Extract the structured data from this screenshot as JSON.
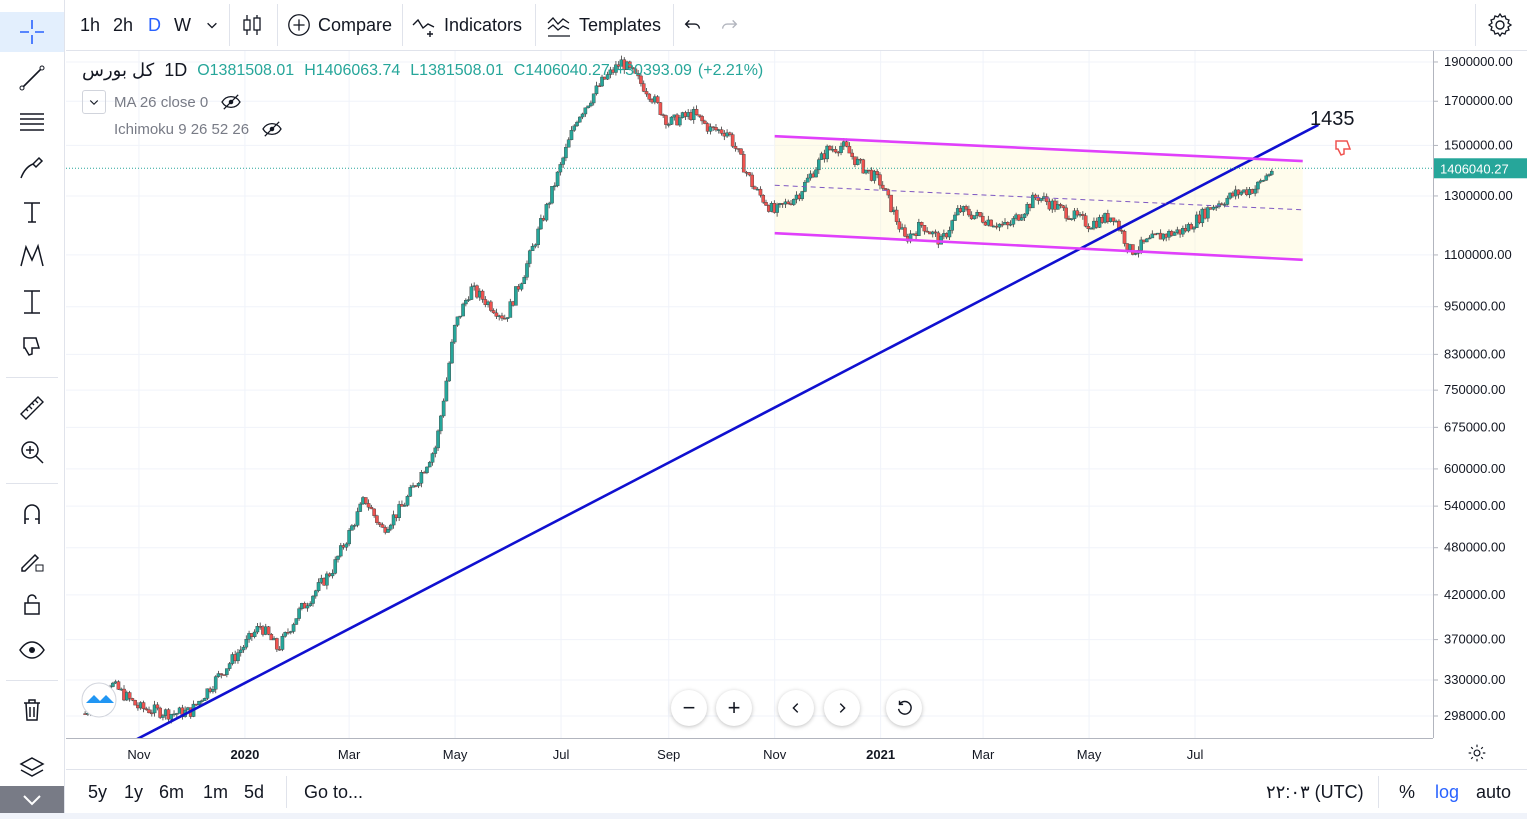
{
  "toolbar": {
    "intervals": [
      "1h",
      "2h",
      "D",
      "W"
    ],
    "active_interval": "D",
    "compare_label": "Compare",
    "indicators_label": "Indicators",
    "templates_label": "Templates"
  },
  "legend": {
    "symbol": "کل بورس",
    "interval": "1D",
    "open": "O1381508.01",
    "high": "H1406063.74",
    "low": "L1381508.01",
    "close": "C1406040.27",
    "change": "+30393.09",
    "change_pct": "(+2.21%)",
    "indicators": [
      {
        "label": "MA 26 close 0"
      },
      {
        "label": "Ichimoku 9 26 52 26"
      }
    ]
  },
  "annotation": {
    "text": "1435"
  },
  "price_axis": {
    "labels": [
      "1900000.00",
      "1700000.00",
      "1500000.00",
      "1300000.00",
      "1100000.00",
      "950000.00",
      "830000.00",
      "750000.00",
      "675000.00",
      "600000.00",
      "540000.00",
      "480000.00",
      "420000.00",
      "370000.00",
      "330000.00",
      "298000.00"
    ],
    "current_price": "1406040.27"
  },
  "time_axis": {
    "labels": [
      "Nov",
      "2020",
      "Mar",
      "May",
      "Jul",
      "Sep",
      "Nov",
      "2021",
      "Mar",
      "May",
      "Jul"
    ]
  },
  "bottom_bar": {
    "ranges": [
      "5y",
      "1y",
      "6m",
      "1m",
      "5d"
    ],
    "goto_label": "Go to...",
    "time": "۲۲:۰۳ (UTC)",
    "percent_label": "%",
    "log_label": "log",
    "auto_label": "auto"
  },
  "colors": {
    "up": "#26a69a",
    "down": "#ef5350",
    "trend_line": "#1010d0",
    "channel": "#e040fb",
    "accent": "#2962ff"
  },
  "chart_data": {
    "type": "candlestick",
    "scale": "log",
    "ylim": [
      280000,
      1960000
    ],
    "x": [
      "2019-10",
      "2019-11",
      "2019-12",
      "2020-01",
      "2020-02",
      "2020-03",
      "2020-04",
      "2020-05",
      "2020-06",
      "2020-07",
      "2020-08",
      "2020-09",
      "2020-10",
      "2020-11",
      "2020-12",
      "2021-01",
      "2021-02",
      "2021-03",
      "2021-04",
      "2021-05",
      "2021-06",
      "2021-07",
      "2021-08"
    ],
    "close_path": [
      [
        "2019-10-01",
        300000
      ],
      [
        "2019-10-15",
        328000
      ],
      [
        "2019-11-01",
        305000
      ],
      [
        "2019-11-20",
        300000
      ],
      [
        "2019-12-01",
        302000
      ],
      [
        "2019-12-15",
        330000
      ],
      [
        "2020-01-01",
        365000
      ],
      [
        "2020-01-10",
        385000
      ],
      [
        "2020-01-20",
        360000
      ],
      [
        "2020-02-01",
        400000
      ],
      [
        "2020-02-20",
        450000
      ],
      [
        "2020-03-01",
        500000
      ],
      [
        "2020-03-10",
        552000
      ],
      [
        "2020-03-20",
        505000
      ],
      [
        "2020-04-01",
        540000
      ],
      [
        "2020-04-20",
        640000
      ],
      [
        "2020-05-01",
        900000
      ],
      [
        "2020-05-10",
        1000000
      ],
      [
        "2020-05-20",
        960000
      ],
      [
        "2020-05-30",
        920000
      ],
      [
        "2020-06-10",
        1050000
      ],
      [
        "2020-06-25",
        1300000
      ],
      [
        "2020-07-10",
        1620000
      ],
      [
        "2020-07-25",
        1800000
      ],
      [
        "2020-08-05",
        1900000
      ],
      [
        "2020-08-20",
        1750000
      ],
      [
        "2020-09-01",
        1600000
      ],
      [
        "2020-09-15",
        1640000
      ],
      [
        "2020-09-25",
        1570000
      ],
      [
        "2020-10-05",
        1560000
      ],
      [
        "2020-10-20",
        1330000
      ],
      [
        "2020-11-01",
        1240000
      ],
      [
        "2020-11-15",
        1310000
      ],
      [
        "2020-12-01",
        1480000
      ],
      [
        "2020-12-10",
        1500000
      ],
      [
        "2020-12-20",
        1420000
      ],
      [
        "2021-01-01",
        1350000
      ],
      [
        "2021-01-15",
        1150000
      ],
      [
        "2021-01-25",
        1200000
      ],
      [
        "2021-02-05",
        1140000
      ],
      [
        "2021-02-15",
        1250000
      ],
      [
        "2021-03-01",
        1220000
      ],
      [
        "2021-03-15",
        1190000
      ],
      [
        "2021-04-01",
        1300000
      ],
      [
        "2021-04-15",
        1250000
      ],
      [
        "2021-05-01",
        1200000
      ],
      [
        "2021-05-15",
        1230000
      ],
      [
        "2021-05-25",
        1110000
      ],
      [
        "2021-06-10",
        1160000
      ],
      [
        "2021-06-25",
        1180000
      ],
      [
        "2021-07-10",
        1260000
      ],
      [
        "2021-07-25",
        1310000
      ],
      [
        "2021-08-05",
        1330000
      ],
      [
        "2021-08-15",
        1406040
      ]
    ],
    "drawings": {
      "trend_line": [
        [
          "2019-10-15",
          268000
        ],
        [
          "2021-09-10",
          1590000
        ]
      ],
      "channel_upper": [
        [
          "2020-11-01",
          1540000
        ],
        [
          "2021-09-01",
          1435000
        ]
      ],
      "channel_lower": [
        [
          "2020-11-01",
          1170000
        ],
        [
          "2021-09-01",
          1085000
        ]
      ],
      "channel_mid": [
        [
          "2020-11-01",
          1340000
        ],
        [
          "2021-09-01",
          1250000
        ]
      ],
      "current_price_line": 1406040.27
    }
  }
}
